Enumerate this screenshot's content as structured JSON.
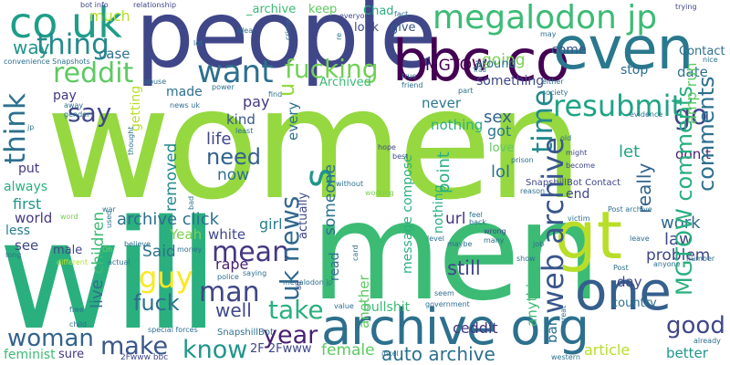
{
  "cloud": {
    "background": "#ffffff",
    "words": [
      {
        "id": "women",
        "text": "women",
        "color": "#95d840"
      },
      {
        "id": "men",
        "text": "men",
        "color": "#3cbb75"
      },
      {
        "id": "will",
        "text": "will",
        "color": "#2ab07f"
      },
      {
        "id": "people",
        "text": "people",
        "color": "#3f4788"
      },
      {
        "id": "archive-org",
        "text": "archive org",
        "color": "#2d708e"
      },
      {
        "id": "bbc-co",
        "text": "bbc co",
        "color": "#440154"
      },
      {
        "id": "even",
        "text": "even",
        "color": "#2a788e"
      },
      {
        "id": "co-uk",
        "text": "co uk",
        "color": "#1f9e89"
      },
      {
        "id": "one",
        "text": "one",
        "color": "#355f8d"
      },
      {
        "id": "megalodon-jp",
        "text": "megalodon jp",
        "color": "#3cbb75"
      },
      {
        "id": "thing",
        "text": "thing",
        "color": "#238a8d"
      },
      {
        "id": "gt",
        "text": "gt",
        "color": "#b8de29"
      },
      {
        "id": "reddit",
        "text": "reddit",
        "color": "#5ec962"
      },
      {
        "id": "fucking",
        "text": "fucking",
        "color": "#73d055"
      },
      {
        "id": "want",
        "text": "want",
        "color": "#2d708e"
      },
      {
        "id": "say",
        "text": "say",
        "color": "#404788"
      },
      {
        "id": "think",
        "text": "think",
        "color": "#2d708e"
      },
      {
        "id": "time",
        "text": "time",
        "color": "#238a8d"
      },
      {
        "id": "go",
        "text": "go",
        "color": "#3f4788"
      },
      {
        "id": "resubmit",
        "text": "resubmit",
        "color": "#20a386"
      },
      {
        "id": "comments",
        "text": "comments",
        "color": "#2d708e"
      },
      {
        "id": "uk-news",
        "text": "uk news",
        "color": "#31688e"
      },
      {
        "id": "web-archive",
        "text": "web archive",
        "color": "#39568c"
      },
      {
        "id": "mgtow-comments",
        "text": "MGTOW comments",
        "color": "#29af7f"
      },
      {
        "id": "shit",
        "text": "shit",
        "color": "#1f968b"
      },
      {
        "id": "need",
        "text": "need",
        "color": "#33638d"
      },
      {
        "id": "guy",
        "text": "guy",
        "color": "#fde725"
      },
      {
        "id": "fuck",
        "text": "fuck",
        "color": "#2d708e"
      },
      {
        "id": "mean",
        "text": "mean",
        "color": "#453781"
      },
      {
        "id": "man",
        "text": "man",
        "color": "#404788"
      },
      {
        "id": "make",
        "text": "make",
        "color": "#39568c"
      },
      {
        "id": "know",
        "text": "know",
        "color": "#1f968b"
      },
      {
        "id": "woman",
        "text": "woman",
        "color": "#33638d"
      },
      {
        "id": "year",
        "text": "year",
        "color": "#481f70"
      },
      {
        "id": "good",
        "text": "good",
        "color": "#3f4788"
      },
      {
        "id": "auto-archive",
        "text": "auto archive",
        "color": "#2d708e"
      },
      {
        "id": "take",
        "text": "take",
        "color": "#2ab07f"
      },
      {
        "id": "right",
        "text": "right",
        "color": "#29af7f"
      },
      {
        "id": "well",
        "text": "well",
        "color": "#404788"
      },
      {
        "id": "live",
        "text": "live",
        "color": "#2c728e"
      },
      {
        "id": "s",
        "text": "s",
        "color": "#1f968b"
      },
      {
        "id": "u",
        "text": "u",
        "color": "#95d840"
      },
      {
        "id": "mgtow",
        "text": "MGTOW",
        "color": "#440154"
      },
      {
        "id": "much",
        "text": "much",
        "color": "#b8de29"
      },
      {
        "id": "way",
        "text": "way",
        "color": "#1f968b"
      },
      {
        "id": "archived",
        "text": "Archived",
        "color": "#3cbb75"
      },
      {
        "id": "never",
        "text": "never",
        "color": "#2a788e"
      },
      {
        "id": "point",
        "text": "point",
        "color": "#29af7f"
      },
      {
        "id": "something",
        "text": "something",
        "color": "#3f4788"
      },
      {
        "id": "going",
        "text": "going",
        "color": "#7ad151"
      },
      {
        "id": "really",
        "text": "really",
        "color": "#33638d"
      },
      {
        "id": "let",
        "text": "let",
        "color": "#20a386"
      },
      {
        "id": "sex",
        "text": "sex",
        "color": "#33638d"
      },
      {
        "id": "lol",
        "text": "lol",
        "color": "#2d708e"
      },
      {
        "id": "life",
        "text": "life",
        "color": "#3f4788"
      },
      {
        "id": "children",
        "text": "children",
        "color": "#3cbb75"
      },
      {
        "id": "said",
        "text": "Said",
        "color": "#2d708e"
      },
      {
        "id": "archive-click",
        "text": "archive click",
        "color": "#2d708e"
      },
      {
        "id": "rape",
        "text": "rape",
        "color": "#481f70"
      },
      {
        "id": "bullshit",
        "text": "bullshit",
        "color": "#3cbb75"
      },
      {
        "id": "ceddit",
        "text": "ceddit",
        "color": "#453781"
      },
      {
        "id": "still",
        "text": "still",
        "color": "#404788"
      },
      {
        "id": "work",
        "text": "work",
        "color": "#31688e"
      },
      {
        "id": "law",
        "text": "law",
        "color": "#3f4788"
      },
      {
        "id": "problem",
        "text": "problem",
        "color": "#3f4788"
      },
      {
        "id": "country",
        "text": "country",
        "color": "#2c728e"
      },
      {
        "id": "article",
        "text": "article",
        "color": "#b8de29"
      },
      {
        "id": "better",
        "text": "better",
        "color": "#1f968b"
      },
      {
        "id": "female",
        "text": "female",
        "color": "#5ec962"
      },
      {
        "id": "feminist",
        "text": "feminist",
        "color": "#3cbb75"
      },
      {
        "id": "sure",
        "text": "sure",
        "color": "#453781"
      },
      {
        "id": "first",
        "text": "first",
        "color": "#1f968b"
      },
      {
        "id": "world",
        "text": "world",
        "color": "#453781"
      },
      {
        "id": "see",
        "text": "see",
        "color": "#3f4788"
      },
      {
        "id": "male",
        "text": "male",
        "color": "#404788"
      },
      {
        "id": "less",
        "text": "less",
        "color": "#287d8e"
      },
      {
        "id": "always",
        "text": "always",
        "color": "#29af7f"
      },
      {
        "id": "put",
        "text": "put",
        "color": "#453781"
      },
      {
        "id": "help",
        "text": "help",
        "color": "#2a788e"
      },
      {
        "id": "made",
        "text": "made",
        "color": "#2d708e"
      },
      {
        "id": "pay",
        "text": "pay",
        "color": "#453781"
      },
      {
        "id": "kind",
        "text": "kind",
        "color": "#39568c"
      },
      {
        "id": "now",
        "text": "now",
        "color": "#2d708e"
      },
      {
        "id": "yeah",
        "text": "Yeah",
        "color": "#7ad151"
      },
      {
        "id": "white",
        "text": "white",
        "color": "#3f4788"
      },
      {
        "id": "girl",
        "text": "girl",
        "color": "#287d8e"
      },
      {
        "id": "url",
        "text": "url",
        "color": "#453781"
      },
      {
        "id": "nothing",
        "text": "nothing",
        "color": "#2ab07f"
      },
      {
        "id": "got",
        "text": "got",
        "color": "#2a788e"
      },
      {
        "id": "love",
        "text": "love",
        "color": "#5ec962"
      },
      {
        "id": "end",
        "text": "end",
        "color": "#3f4788"
      },
      {
        "id": "day",
        "text": "day",
        "color": "#3f4788"
      },
      {
        "id": "dont",
        "text": "don t",
        "color": "#481f70"
      },
      {
        "id": "amp-run",
        "text": "amp run",
        "color": "#5ec962"
      },
      {
        "id": "date",
        "text": "date",
        "color": "#2c728e"
      },
      {
        "id": "stop",
        "text": "stop",
        "color": "#2d708e"
      },
      {
        "id": "come",
        "text": "come",
        "color": "#39568c"
      },
      {
        "id": "give",
        "text": "give",
        "color": "#39568c"
      },
      {
        "id": "look",
        "text": "look",
        "color": "#3f4788"
      },
      {
        "id": "chad",
        "text": "Chad",
        "color": "#29af7f"
      },
      {
        "id": "case",
        "text": "case",
        "color": "#2d708e"
      },
      {
        "id": "removed",
        "text": "removed",
        "color": "#238a8d"
      },
      {
        "id": "every",
        "text": "every",
        "color": "#2c728e"
      },
      {
        "id": "someone",
        "text": "someone",
        "color": "#2d708e"
      },
      {
        "id": "actually",
        "text": "actually",
        "color": "#3f4788"
      },
      {
        "id": "message-compose",
        "text": "message compose",
        "color": "#2ab07f"
      },
      {
        "id": "anything",
        "text": "anything",
        "color": "#3cbb75"
      },
      {
        "id": "another",
        "text": "another",
        "color": "#5ec962"
      },
      {
        "id": "read",
        "text": "read",
        "color": "#2d708e"
      },
      {
        "id": "bar",
        "text": "bar",
        "color": "#2d708e"
      },
      {
        "id": "getting",
        "text": "getting",
        "color": "#b8de29"
      },
      {
        "id": "3a-2f",
        "text": "3A 2F",
        "color": "#287d8e"
      },
      {
        "id": "2f-2fwww",
        "text": "2F 2Fwww",
        "color": "#3f4788"
      },
      {
        "id": "_archive",
        "text": "_archive",
        "color": "#3cbb75"
      },
      {
        "id": "keep",
        "text": "keep",
        "color": "#5ec962"
      },
      {
        "id": "around",
        "text": "around",
        "color": "#2d708e"
      },
      {
        "id": "contact-message",
        "text": "Contact message",
        "color": "#2d708e"
      },
      {
        "id": "snapshillbot",
        "text": "SnapshillBot",
        "color": "#2d708e"
      },
      {
        "id": "snapshillbot-contact",
        "text": "SnapshillBot Contact",
        "color": "#3f4788"
      },
      {
        "id": "convenience-snapshots",
        "text": "convenience Snapshots",
        "color": "#2d708e"
      },
      {
        "id": "2fwww-bbc",
        "text": "2Fwww bbc",
        "color": "#3f4788"
      },
      {
        "id": "bot-info",
        "text": "bot info",
        "color": "#3f4788"
      },
      {
        "id": "relationship",
        "text": "relationship",
        "color": "#404788"
      },
      {
        "id": "trying",
        "text": "trying",
        "color": "#404788"
      },
      {
        "id": "everyone",
        "text": "everyone",
        "color": "#404788"
      },
      {
        "id": "fact",
        "text": "fact",
        "color": "#2d708e"
      },
      {
        "id": "may",
        "text": "may",
        "color": "#2d708e"
      },
      {
        "id": "either",
        "text": "either",
        "color": "#2d708e"
      },
      {
        "id": "nice",
        "text": "nice",
        "color": "#2d708e"
      },
      {
        "id": "part",
        "text": "part",
        "color": "#2d708e"
      },
      {
        "id": "society",
        "text": "society",
        "color": "#2d708e"
      },
      {
        "id": "trad",
        "text": "Trad",
        "color": "#2d708e"
      },
      {
        "id": "true",
        "text": "true",
        "color": "#2d708e"
      },
      {
        "id": "friend",
        "text": "friend",
        "color": "#2d708e"
      },
      {
        "id": "evidence",
        "text": "evidence",
        "color": "#2d708e"
      },
      {
        "id": "prison",
        "text": "prison",
        "color": "#2d708e"
      },
      {
        "id": "reason",
        "text": "reason",
        "color": "#2d708e"
      },
      {
        "id": "might",
        "text": "might",
        "color": "#3f4788"
      },
      {
        "id": "old",
        "text": "old",
        "color": "#2d708e"
      },
      {
        "id": "become",
        "text": "become",
        "color": "#3f4788"
      },
      {
        "id": "hope",
        "text": "hope",
        "color": "#3f4788"
      },
      {
        "id": "best",
        "text": "best",
        "color": "#3f4788"
      },
      {
        "id": "working",
        "text": "working",
        "color": "#7ad151"
      },
      {
        "id": "without",
        "text": "without",
        "color": "#2d708e"
      },
      {
        "id": "post-archive",
        "text": "Post archive",
        "color": "#2d708e"
      },
      {
        "id": "victim",
        "text": "victim",
        "color": "#2d708e"
      },
      {
        "id": "back",
        "text": "back",
        "color": "#2d708e"
      },
      {
        "id": "feel",
        "text": "feel",
        "color": "#2d708e"
      },
      {
        "id": "wrong",
        "text": "wrong",
        "color": "#3f4788"
      },
      {
        "id": "many",
        "text": "many",
        "color": "#2d708e"
      },
      {
        "id": "level",
        "text": "level",
        "color": "#2d708e"
      },
      {
        "id": "maybe",
        "text": "maybe",
        "color": "#2d708e"
      },
      {
        "id": "job",
        "text": "job",
        "color": "#2d708e"
      },
      {
        "id": "show",
        "text": "show",
        "color": "#2d708e"
      },
      {
        "id": "great",
        "text": "great",
        "color": "#2d708e"
      },
      {
        "id": "post",
        "text": "Post",
        "color": "#2d708e"
      },
      {
        "id": "anyone",
        "text": "anyone",
        "color": "#2d708e"
      },
      {
        "id": "leave",
        "text": "leave",
        "color": "#2d708e"
      },
      {
        "id": "number",
        "text": "number",
        "color": "#2d708e"
      },
      {
        "id": "already",
        "text": "already",
        "color": "#2d708e"
      },
      {
        "id": "western",
        "text": "western",
        "color": "#2d708e"
      },
      {
        "id": "government",
        "text": "government",
        "color": "#2d708e"
      },
      {
        "id": "seem",
        "text": "seem",
        "color": "#2d708e"
      },
      {
        "id": "value",
        "text": "value",
        "color": "#2d708e"
      },
      {
        "id": "card",
        "text": "card",
        "color": "#2d708e"
      },
      {
        "id": "megalodon-jp-small",
        "text": "megalodon jp",
        "color": "#2d708e"
      },
      {
        "id": "ad",
        "text": "ad",
        "color": "#3f4788"
      },
      {
        "id": "incel",
        "text": "incel",
        "color": "#2d708e"
      },
      {
        "id": "child",
        "text": "child",
        "color": "#2d708e"
      },
      {
        "id": "different",
        "text": "different",
        "color": "#b8de29"
      },
      {
        "id": "long",
        "text": "long",
        "color": "#2d708e"
      },
      {
        "id": "free",
        "text": "free",
        "color": "#2d708e"
      },
      {
        "id": "special-forces",
        "text": "special forces",
        "color": "#2d708e"
      },
      {
        "id": "actual",
        "text": "actual",
        "color": "#2d708e"
      },
      {
        "id": "believe",
        "text": "believe",
        "color": "#2d708e"
      },
      {
        "id": "oh",
        "text": "Oh",
        "color": "#7ad151"
      },
      {
        "id": "money",
        "text": "money",
        "color": "#2d708e"
      },
      {
        "id": "police",
        "text": "police",
        "color": "#2d708e"
      },
      {
        "id": "saying",
        "text": "saying",
        "color": "#2d708e"
      },
      {
        "id": "word",
        "text": "word",
        "color": "#7ad151"
      },
      {
        "id": "used",
        "text": "used",
        "color": "#2d708e"
      },
      {
        "id": "war",
        "text": "war",
        "color": "#2d708e"
      },
      {
        "id": "bad",
        "text": "bad",
        "color": "#2d708e"
      },
      {
        "id": "jp",
        "text": "jp",
        "color": "#2d708e"
      },
      {
        "id": "away",
        "text": "away",
        "color": "#2d708e"
      },
      {
        "id": "gender",
        "text": "gender",
        "color": "#2d708e"
      },
      {
        "id": "abuse",
        "text": "abuse",
        "color": "#2d708e"
      },
      {
        "id": "news-uk",
        "text": "news uk",
        "color": "#2d708e"
      },
      {
        "id": "least",
        "text": "least",
        "color": "#2d708e"
      },
      {
        "id": "power",
        "text": "power",
        "color": "#2d708e"
      },
      {
        "id": "find",
        "text": "find",
        "color": "#2d708e"
      },
      {
        "id": "thought",
        "text": "thought",
        "color": "#2d708e"
      },
      {
        "id": "lot",
        "text": "lot",
        "color": "#2d708e"
      },
      {
        "id": "idea",
        "text": "idea",
        "color": "#2d708e"
      },
      {
        "id": "crime",
        "text": "crime",
        "color": "#2d708e"
      },
      {
        "id": "re",
        "text": "re",
        "color": "#2d708e"
      }
    ]
  }
}
